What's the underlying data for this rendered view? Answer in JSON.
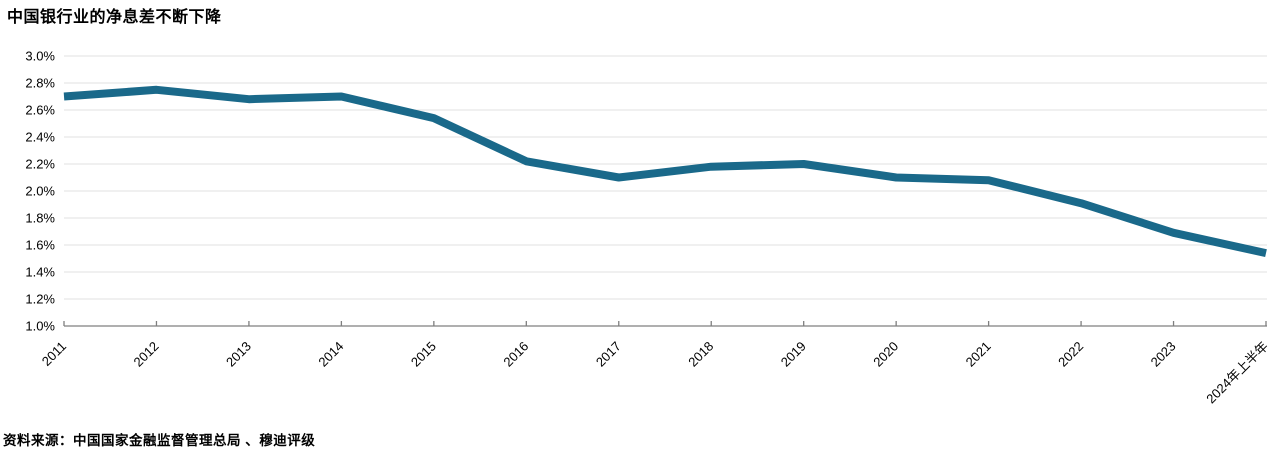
{
  "page": {
    "title": "中国银行业的净息差不断下降",
    "source": "资料来源：中国国家金融监督管理总局 、穆迪评级"
  },
  "chart_data": {
    "type": "line",
    "title": "中国银行业的净息差不断下降",
    "categories": [
      "2011",
      "2012",
      "2013",
      "2014",
      "2015",
      "2016",
      "2017",
      "2018",
      "2019",
      "2020",
      "2021",
      "2022",
      "2023",
      "2024年上半年"
    ],
    "series": [
      {
        "name": "净息差",
        "values": [
          2.7,
          2.75,
          2.68,
          2.7,
          2.54,
          2.22,
          2.1,
          2.18,
          2.2,
          2.1,
          2.08,
          1.91,
          1.69,
          1.54
        ]
      }
    ],
    "unit": "%",
    "xlabel": "",
    "ylabel": "",
    "ylim": [
      1.0,
      3.0
    ],
    "yticks": [
      {
        "value": 3.0,
        "label": "3.0%"
      },
      {
        "value": 2.8,
        "label": "2.8%"
      },
      {
        "value": 2.6,
        "label": "2.6%"
      },
      {
        "value": 2.4,
        "label": "2.4%"
      },
      {
        "value": 2.2,
        "label": "2.2%"
      },
      {
        "value": 2.0,
        "label": "2.0%"
      },
      {
        "value": 1.8,
        "label": "1.8%"
      },
      {
        "value": 1.6,
        "label": "1.6%"
      },
      {
        "value": 1.4,
        "label": "1.4%"
      },
      {
        "value": 1.2,
        "label": "1.2%"
      },
      {
        "value": 1.0,
        "label": "1.0%"
      }
    ],
    "grid": true,
    "legend": false,
    "x_label_rotation": -45,
    "colors": {
      "line": "#1A698A",
      "grid": "#E2E2E2",
      "axis": "#7F7F7F",
      "text": "#000000"
    },
    "source": "资料来源：中国国家金融监督管理总局 、穆迪评级"
  }
}
